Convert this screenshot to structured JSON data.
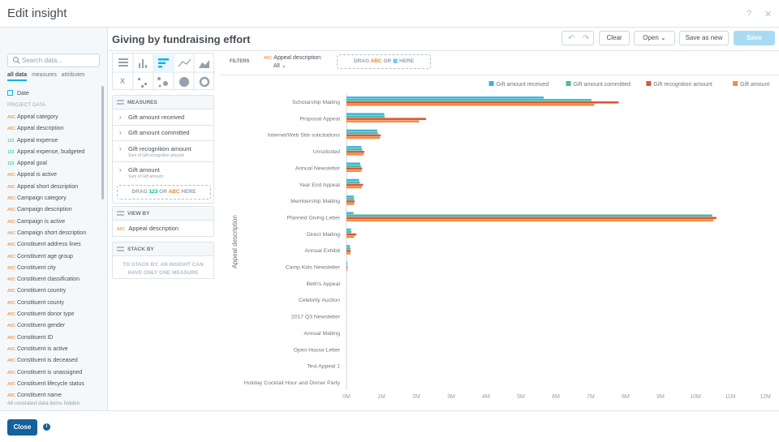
{
  "dialog": {
    "title": "Edit insight",
    "help_icon": "?",
    "close_icon": "✕"
  },
  "catalog": {
    "search_placeholder": "Search data...",
    "tabs": [
      {
        "label": "all data",
        "active": true
      },
      {
        "label": "measures",
        "active": false
      },
      {
        "label": "attributes",
        "active": false
      }
    ],
    "date_label": "Date",
    "project_data_label": "PROJECT DATA",
    "items": [
      {
        "type": "ABC",
        "label": "Appeal category"
      },
      {
        "type": "ABC",
        "label": "Appeal description"
      },
      {
        "type": "123",
        "label": "Appeal expense"
      },
      {
        "type": "123",
        "label": "Appeal expense, budgeted"
      },
      {
        "type": "123",
        "label": "Appeal goal"
      },
      {
        "type": "ABC",
        "label": "Appeal is active"
      },
      {
        "type": "ABC",
        "label": "Appeal short description"
      },
      {
        "type": "ABC",
        "label": "Campaign category"
      },
      {
        "type": "ABC",
        "label": "Campaign description"
      },
      {
        "type": "ABC",
        "label": "Campaign is active"
      },
      {
        "type": "ABC",
        "label": "Campaign short description"
      },
      {
        "type": "ABC",
        "label": "Constituent address lines"
      },
      {
        "type": "ABC",
        "label": "Constituent age group"
      },
      {
        "type": "ABC",
        "label": "Constituent city"
      },
      {
        "type": "ABC",
        "label": "Constituent classification"
      },
      {
        "type": "ABC",
        "label": "Constituent country"
      },
      {
        "type": "ABC",
        "label": "Constituent county"
      },
      {
        "type": "ABC",
        "label": "Constituent donor type"
      },
      {
        "type": "ABC",
        "label": "Constituent gender"
      },
      {
        "type": "ABC",
        "label": "Constituent ID"
      },
      {
        "type": "ABC",
        "label": "Constituent is active"
      },
      {
        "type": "ABC",
        "label": "Constituent is deceased"
      },
      {
        "type": "ABC",
        "label": "Constituent is unassigned"
      },
      {
        "type": "ABC",
        "label": "Constituent lifecycle status"
      },
      {
        "type": "ABC",
        "label": "Constituent name"
      }
    ],
    "hidden_note": "48 unrelated data items hidden"
  },
  "toolbar": {
    "insight_title": "Giving by fundraising effort",
    "undo_icon": "↶",
    "redo_icon": "↷",
    "clear_label": "Clear",
    "open_label": "Open ⌄",
    "save_as_new_label": "Save as new",
    "save_label": "Save"
  },
  "config": {
    "measures_header": "MEASURES",
    "measures": [
      {
        "label": "Gift amount received",
        "sub": ""
      },
      {
        "label": "Gift amount committed",
        "sub": ""
      },
      {
        "label": "Gift recognition amount",
        "sub": "Sum of Gift recognition amount"
      },
      {
        "label": "Gift amount",
        "sub": "Sum of Gift amount"
      }
    ],
    "drop_measures": {
      "pre": "DRAG ",
      "num": "123",
      "mid": " OR ",
      "abc": "ABC",
      "post": " HERE"
    },
    "viewby_header": "VIEW BY",
    "viewby_type": "ABC",
    "viewby_item": "Appeal description",
    "stackby_header": "STACK BY",
    "stackby_msg": "TO STACK BY, AN INSIGHT CAN HAVE ONLY ONE MEASURE"
  },
  "filters": {
    "label": "FILTERS",
    "chip_type": "ABC",
    "chip_title": "Appeal description:",
    "chip_value": "All ⌄",
    "drop": {
      "pre": "DRAG ",
      "abc": "ABC",
      "mid": " OR ",
      "cal": "▦",
      "post": " HERE"
    }
  },
  "footer": {
    "close_label": "Close",
    "info_icon": "i"
  },
  "colors": {
    "received": "#3fb3e0",
    "committed": "#48bd9b",
    "recognition": "#e0533f",
    "amount": "#ee8e3d"
  },
  "chart_data": {
    "type": "bar",
    "orientation": "horizontal",
    "ylabel": "Appeal description",
    "x_ticks": [
      "0M",
      "1M",
      "2M",
      "3M",
      "4M",
      "5M",
      "6M",
      "7M",
      "8M",
      "9M",
      "10M",
      "11M",
      "12M"
    ],
    "xlim": [
      0,
      12000000
    ],
    "categories": [
      "Scholarship Mailing",
      "Proposal Appeal",
      "Internet/Web Site solicitations",
      "Unsolicited",
      "Annual Newsletter",
      "Year End Appeal",
      "Membership Mailing",
      "Planned Giving Letter",
      "Direct Mailing",
      "Annual Exhibit",
      "Camp Kids Newsletter",
      "Beth's Appeal",
      "Celebrity Auction",
      "2017 Q3 Newsletter",
      "Annual Mailing",
      "Open House Letter",
      "Test Appeal 1",
      "Holiday Cocktail Hour and Dinner Party"
    ],
    "series": [
      {
        "name": "Gift amount received",
        "color": "#3fb3e0",
        "values": [
          5650000,
          1080000,
          880000,
          430000,
          390000,
          360000,
          210000,
          200000,
          130000,
          100000,
          20000,
          0,
          0,
          0,
          0,
          0,
          0,
          0
        ]
      },
      {
        "name": "Gift amount committed",
        "color": "#48bd9b",
        "values": [
          7020000,
          1090000,
          900000,
          450000,
          410000,
          380000,
          220000,
          10480000,
          140000,
          110000,
          22000,
          0,
          0,
          0,
          0,
          0,
          0,
          0
        ]
      },
      {
        "name": "Gift recognition amount",
        "color": "#e0533f",
        "values": [
          7800000,
          2280000,
          980000,
          510000,
          450000,
          470000,
          230000,
          10600000,
          280000,
          120000,
          28000,
          0,
          0,
          0,
          0,
          0,
          0,
          0
        ]
      },
      {
        "name": "Gift amount",
        "color": "#ee8e3d",
        "values": [
          7100000,
          2080000,
          960000,
          490000,
          430000,
          440000,
          220000,
          10520000,
          220000,
          115000,
          25000,
          0,
          0,
          0,
          0,
          0,
          0,
          0
        ]
      }
    ]
  }
}
